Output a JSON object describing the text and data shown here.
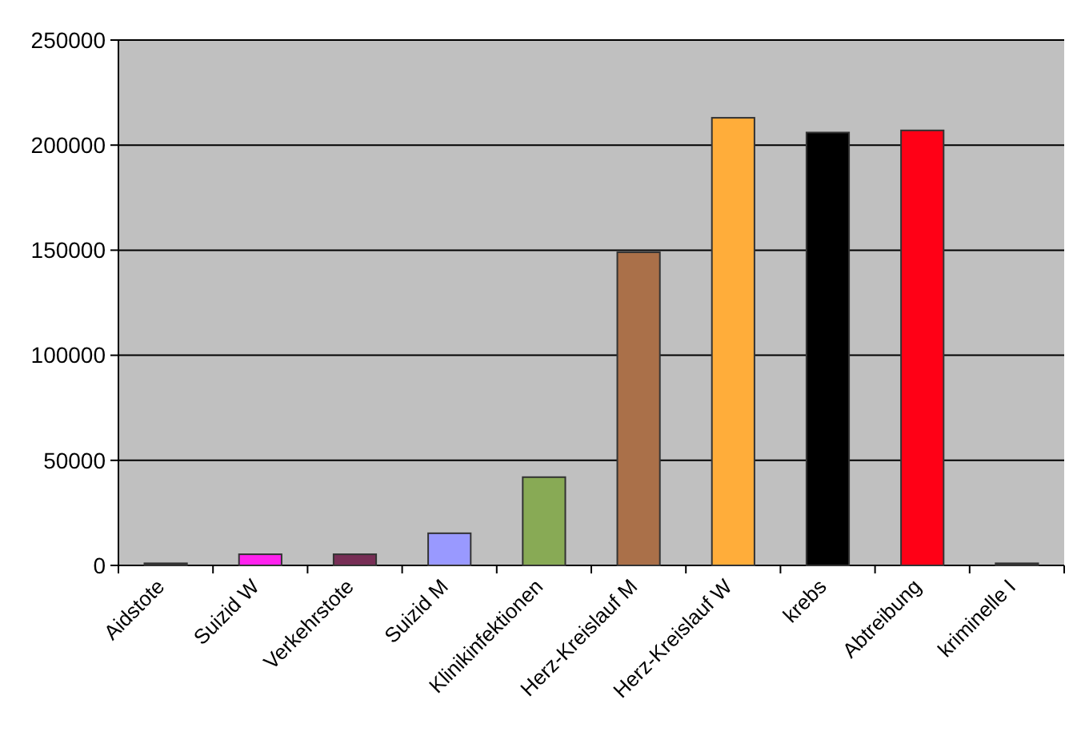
{
  "chart_data": {
    "type": "bar",
    "categories": [
      "Aidstote",
      "Suizid W",
      "Verkehrstote",
      "Suizid M",
      "Klinikinfektionen",
      "Herz-Kreislauf M",
      "Herz-Kreislauf W",
      "krebs",
      "Abtreibung",
      "kriminelle I"
    ],
    "values": [
      1000,
      5300,
      5300,
      15300,
      42000,
      149000,
      213000,
      206000,
      207000,
      1000
    ],
    "colors": [
      "#333333",
      "#ff22ee",
      "#772e55",
      "#9999ff",
      "#88aa55",
      "#aa7049",
      "#ffad3a",
      "#000000",
      "#ff0016",
      "#333333"
    ],
    "ylim": [
      0,
      250000
    ],
    "yticks": [
      0,
      50000,
      100000,
      150000,
      200000,
      250000
    ],
    "grid": "y"
  }
}
